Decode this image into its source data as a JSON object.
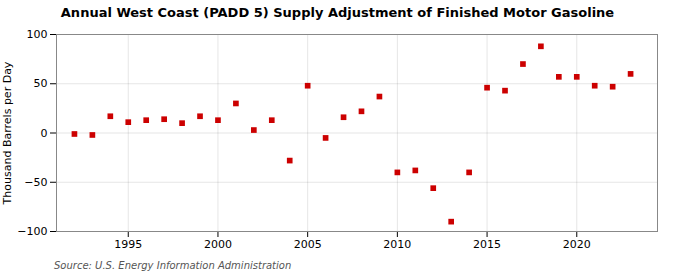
{
  "chart_data": {
    "type": "scatter",
    "title": "Annual West Coast (PADD 5) Supply Adjustment of Finished Motor Gasoline",
    "ylabel": "Thousand Barrels per Day",
    "source": "Source: U.S. Energy Information Administration",
    "x": [
      1992,
      1993,
      1994,
      1995,
      1996,
      1997,
      1998,
      1999,
      2000,
      2001,
      2002,
      2003,
      2004,
      2005,
      2006,
      2007,
      2008,
      2009,
      2010,
      2011,
      2012,
      2013,
      2014,
      2015,
      2016,
      2017,
      2018,
      2019,
      2020,
      2021,
      2022,
      2023
    ],
    "values": [
      -1,
      -2,
      17,
      11,
      13,
      14,
      10,
      17,
      13,
      30,
      3,
      13,
      -28,
      48,
      -5,
      16,
      22,
      37,
      -40,
      -38,
      -56,
      -90,
      -40,
      46,
      43,
      70,
      88,
      57,
      57,
      48,
      47,
      60
    ],
    "color": "#cc0000",
    "marker": "square",
    "xlim": [
      1991,
      2024.5
    ],
    "xticks": [
      1995,
      2000,
      2005,
      2010,
      2015,
      2020
    ],
    "ylim": [
      -100,
      100
    ],
    "yticks": [
      -100,
      -50,
      0,
      50,
      100
    ],
    "grid": true
  }
}
